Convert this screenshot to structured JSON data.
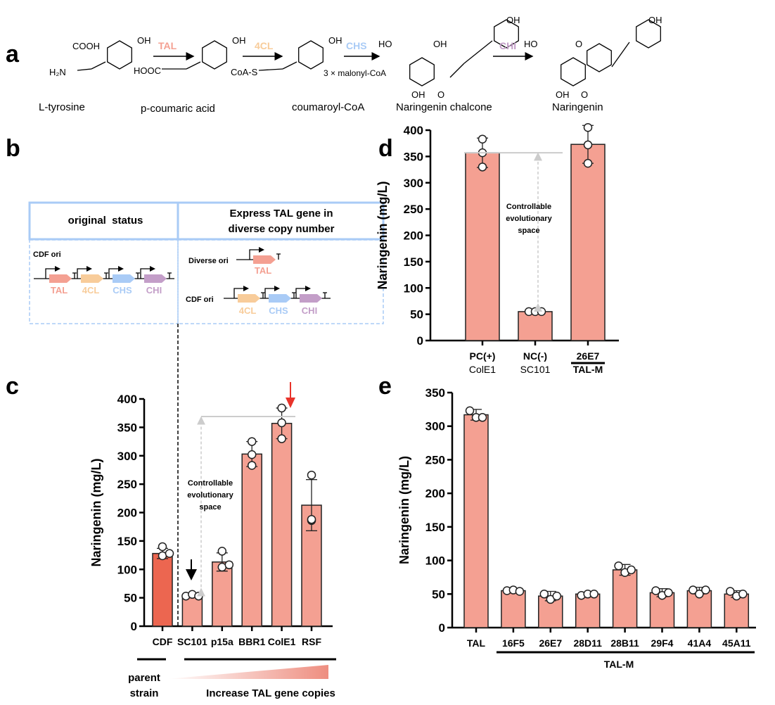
{
  "panel_labels": {
    "a": "a",
    "b": "b",
    "c": "c",
    "d": "d",
    "e": "e"
  },
  "pathway": {
    "compounds": [
      "L-tyrosine",
      "p-coumaric acid",
      "coumaroyl-CoA",
      "Naringenin chalcone",
      "Naringenin"
    ],
    "enzymes": [
      {
        "name": "TAL",
        "color": "#f4a092"
      },
      {
        "name": "4CL",
        "color": "#f8cc9a"
      },
      {
        "name": "CHS",
        "color": "#a9cbf6"
      },
      {
        "name": "CHI",
        "color": "#c39ec8"
      }
    ],
    "cosubstrate": "3 × malonyl-CoA",
    "groups": {
      "oh": "OH",
      "ho": "HO",
      "cooh": "COOH",
      "h2n": "H₂N",
      "hooc": "HOOC",
      "coas": "CoA-S",
      "o": "O"
    }
  },
  "construct": {
    "left_header": "original  status",
    "right_header_line1": "Express TAL gene in",
    "right_header_line2": "diverse copy number",
    "cdf_ori": "CDF ori",
    "diverse_ori": "Diverse  ori",
    "genes": [
      "TAL",
      "4CL",
      "CHS",
      "CHI"
    ],
    "border_color": "#a9cbf6"
  },
  "chart_data": [
    {
      "id": "c",
      "type": "bar",
      "ylabel": "Naringenin (mg/L)",
      "ylim": [
        0,
        400
      ],
      "yticks": [
        0,
        50,
        100,
        150,
        200,
        250,
        300,
        350,
        400
      ],
      "categories": [
        "CDF",
        "SC101",
        "p15a",
        "BBR1",
        "ColE1",
        "RSF"
      ],
      "values": [
        128,
        53,
        113,
        303,
        357,
        213
      ],
      "errors": [
        9,
        2,
        16,
        22,
        27,
        45
      ],
      "points": [
        [
          140,
          124,
          128
        ],
        [
          53,
          56,
          53
        ],
        [
          132,
          104,
          108
        ],
        [
          325,
          302,
          283
        ],
        [
          384,
          358,
          330
        ],
        [
          266,
          186,
          188
        ]
      ],
      "bar_colors": [
        "#ec6650",
        "#f4a092",
        "#f4a092",
        "#f4a092",
        "#f4a092",
        "#f4a092"
      ],
      "annotation": [
        "Controllable",
        "evolutionary",
        "space"
      ],
      "group_labels": {
        "parent": [
          "parent",
          "strain"
        ],
        "increase": "Increase TAL gene copies"
      },
      "arrow_colors": {
        "black": "#000000",
        "red": "#e8332a"
      }
    },
    {
      "id": "d",
      "type": "bar",
      "ylabel": "Naringenin (mg/L)",
      "ylim": [
        0,
        400
      ],
      "yticks": [
        0,
        50,
        100,
        150,
        200,
        250,
        300,
        350,
        400
      ],
      "categories": [
        "PC(+)",
        "NC(-)",
        "26E7"
      ],
      "sublabels": [
        "ColE1",
        "SC101",
        "TAL-M"
      ],
      "values": [
        357,
        55,
        373
      ],
      "errors": [
        28,
        2,
        36
      ],
      "points": [
        [
          383,
          357,
          330
        ],
        [
          55,
          55,
          55
        ],
        [
          405,
          372,
          337
        ]
      ],
      "bar_color": "#f4a092",
      "annotation": [
        "Controllable",
        "evolutionary",
        "space"
      ]
    },
    {
      "id": "e",
      "type": "bar",
      "ylabel": "Naringenin (mg/L)",
      "ylim": [
        0,
        350
      ],
      "yticks": [
        0,
        50,
        100,
        150,
        200,
        250,
        300,
        350
      ],
      "categories": [
        "TAL",
        "16F5",
        "26E7",
        "28D11",
        "28B11",
        "29F4",
        "41A4",
        "45A11"
      ],
      "values": [
        317,
        55,
        47,
        50,
        86,
        52,
        55,
        50
      ],
      "errors": [
        8,
        2,
        7,
        2,
        8,
        6,
        5,
        5
      ],
      "points": [
        [
          323,
          313,
          313
        ],
        [
          55,
          56,
          54
        ],
        [
          50,
          42,
          47
        ],
        [
          48,
          50,
          50
        ],
        [
          92,
          82,
          86
        ],
        [
          55,
          48,
          52
        ],
        [
          56,
          50,
          56
        ],
        [
          54,
          47,
          50
        ]
      ],
      "bar_color": "#f4a092",
      "group_label": "TAL-M"
    }
  ]
}
